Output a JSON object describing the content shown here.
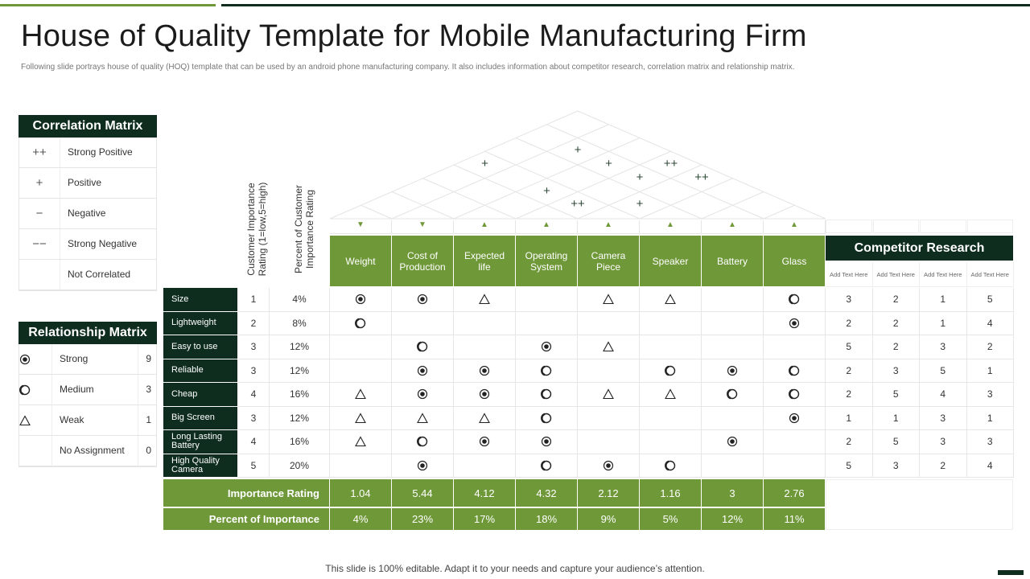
{
  "slide": {
    "title": "House of Quality Template for Mobile Manufacturing Firm",
    "subtitle": "Following slide portrays house of quality (HOQ) template that can be used by an android phone manufacturing company. It also includes information about competitor research, correlation matrix and relationship matrix.",
    "footer": "This slide is 100% editable. Adapt it to your needs and capture your audience’s attention."
  },
  "colors": {
    "dark_green": "#0f2d1f",
    "accent_green": "#6f9839"
  },
  "correlation_legend": {
    "title": "Correlation Matrix",
    "items": [
      {
        "symbol": "++",
        "label": "Strong Positive"
      },
      {
        "symbol": "+",
        "label": "Positive"
      },
      {
        "symbol": "−",
        "label": "Negative"
      },
      {
        "symbol": "−−",
        "label": "Strong Negative"
      },
      {
        "symbol": "",
        "label": "Not Correlated"
      }
    ]
  },
  "relationship_legend": {
    "title": "Relationship Matrix",
    "items": [
      {
        "icon": "strong",
        "label": "Strong",
        "value": "9"
      },
      {
        "icon": "medium",
        "label": "Medium",
        "value": "3"
      },
      {
        "icon": "weak",
        "label": "Weak",
        "value": "1"
      },
      {
        "icon": "none",
        "label": "No Assignment",
        "value": "0"
      }
    ]
  },
  "matrix": {
    "rating_header": "Customer Importance Rating (1=low,5=high)",
    "percent_header": "Percent of Customer Importance  Rating",
    "technical": [
      {
        "label": "Weight",
        "direction": "down"
      },
      {
        "label": "Cost of Production",
        "direction": "down"
      },
      {
        "label": "Expected life",
        "direction": "up"
      },
      {
        "label": "Operating System",
        "direction": "up"
      },
      {
        "label": "Camera Piece",
        "direction": "up"
      },
      {
        "label": "Speaker",
        "direction": "up"
      },
      {
        "label": "Battery",
        "direction": "up"
      },
      {
        "label": "Glass",
        "direction": "up"
      }
    ],
    "requirements": [
      {
        "label": "Size",
        "rating": "1",
        "percent": "4%",
        "cells": [
          "S",
          "S",
          "W",
          "",
          "W",
          "W",
          "",
          "M"
        ],
        "comp": [
          "3",
          "2",
          "1",
          "5"
        ]
      },
      {
        "label": "Lightweight",
        "rating": "2",
        "percent": "8%",
        "cells": [
          "M",
          "",
          "",
          "",
          "",
          "",
          "",
          "S"
        ],
        "comp": [
          "2",
          "2",
          "1",
          "4"
        ]
      },
      {
        "label": "Easy to use",
        "rating": "3",
        "percent": "12%",
        "cells": [
          "",
          "M",
          "",
          "S",
          "W",
          "",
          "",
          ""
        ],
        "comp": [
          "5",
          "2",
          "3",
          "2"
        ]
      },
      {
        "label": "Reliable",
        "rating": "3",
        "percent": "12%",
        "cells": [
          "",
          "S",
          "S",
          "M",
          "",
          "M",
          "S",
          "M"
        ],
        "comp": [
          "2",
          "3",
          "5",
          "1"
        ]
      },
      {
        "label": "Cheap",
        "rating": "4",
        "percent": "16%",
        "cells": [
          "W",
          "S",
          "S",
          "M",
          "W",
          "W",
          "M",
          "M"
        ],
        "comp": [
          "2",
          "5",
          "4",
          "3"
        ]
      },
      {
        "label": "Big Screen",
        "rating": "3",
        "percent": "12%",
        "cells": [
          "W",
          "W",
          "W",
          "M",
          "",
          "",
          "",
          "S"
        ],
        "comp": [
          "1",
          "1",
          "3",
          "1"
        ]
      },
      {
        "label": "Long Lasting Battery",
        "rating": "4",
        "percent": "16%",
        "cells": [
          "W",
          "M",
          "S",
          "S",
          "",
          "",
          "S",
          ""
        ],
        "comp": [
          "2",
          "5",
          "3",
          "3"
        ]
      },
      {
        "label": "High Quality Camera",
        "rating": "5",
        "percent": "20%",
        "cells": [
          "",
          "S",
          "",
          "M",
          "S",
          "M",
          "",
          ""
        ],
        "comp": [
          "5",
          "3",
          "2",
          "4"
        ]
      }
    ],
    "importance_label": "Importance Rating",
    "importance": [
      "1.04",
      "5.44",
      "4.12",
      "4.32",
      "2.12",
      "1.16",
      "3",
      "2.76"
    ],
    "percent_label": "Percent of Importance",
    "percent_importance": [
      "4%",
      "23%",
      "17%",
      "18%",
      "9%",
      "5%",
      "12%",
      "11%"
    ]
  },
  "competitor": {
    "title": "Competitor Research",
    "columns": [
      "Add Text Here",
      "Add Text Here",
      "Add Text Here",
      "Add Text Here"
    ]
  },
  "roof": {
    "marks": [
      {
        "symbol": "++"
      },
      {
        "symbol": "+"
      },
      {
        "symbol": "+"
      },
      {
        "symbol": "+"
      },
      {
        "symbol": "+"
      },
      {
        "symbol": "++"
      },
      {
        "symbol": "+"
      },
      {
        "symbol": "++"
      },
      {
        "symbol": "+"
      }
    ]
  }
}
